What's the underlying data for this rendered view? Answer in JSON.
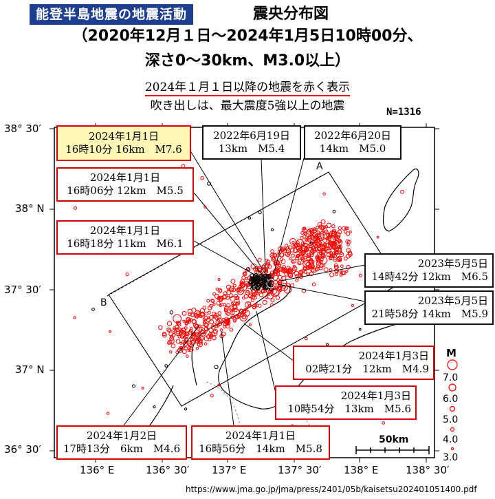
{
  "header": {
    "badge": "能登半島地震の地震活動",
    "title": "震央分布図",
    "line2": "（2020年12月１日～2024年1月5日10時00分、",
    "line3": "深さ0～30km、M3.0以上）"
  },
  "subheader": {
    "line1": "2024年１月１日以降の地震を赤く表示",
    "line2": "吹き出しは、最大震度5強以上の地震"
  },
  "count": "N=1316",
  "axes": {
    "lat_labels": [
      "38° 30′",
      "38° N",
      "37° 30′",
      "37° N",
      "36° 30′"
    ],
    "lon_labels": [
      "136° E",
      "136° 30′",
      "137° E",
      "137° 30′",
      "138° E",
      "138° 30′"
    ]
  },
  "profile_labels": {
    "a": "A",
    "b": "B"
  },
  "callouts": [
    {
      "id": "c1",
      "date": "2024年1月1日",
      "detail": "16時10分 16km　M7.6",
      "style": "red-yellow"
    },
    {
      "id": "c2",
      "date": "2024年1月1日",
      "detail": "16時06分 12km　M5.5",
      "style": "red"
    },
    {
      "id": "c3",
      "date": "2024年1月1日",
      "detail": "16時18分 11km　M6.1",
      "style": "red"
    },
    {
      "id": "c4",
      "date": "2022年6月19日",
      "detail": "13km　M5.4",
      "style": "black"
    },
    {
      "id": "c5",
      "date": "2022年6月20日",
      "detail": "14km　M5.0",
      "style": "black"
    },
    {
      "id": "c6",
      "date": "2023年5月5日",
      "detail": "14時42分 12km　M6.5",
      "style": "black"
    },
    {
      "id": "c7",
      "date": "2023年5月5日",
      "detail": "21時58分 14km　M5.9",
      "style": "black"
    },
    {
      "id": "c8",
      "date": "2024年1月3日",
      "detail": "02時21分　12km　M4.9",
      "style": "red"
    },
    {
      "id": "c9",
      "date": "2024年1月3日",
      "detail": "10時54分　13km　M5.6",
      "style": "red"
    },
    {
      "id": "c10",
      "date": "2024年1月2日",
      "detail": "17時13分　6km　M4.6",
      "style": "red"
    },
    {
      "id": "c11",
      "date": "2024年1月1日",
      "detail": "16時56分　14km　M5.8",
      "style": "red"
    }
  ],
  "legend": {
    "title": "M",
    "magnitudes": [
      "7.0",
      "6.0",
      "5.0",
      "4.0",
      "3.0"
    ]
  },
  "scale": {
    "label": "50km"
  },
  "source": "https://www.jma.go.jp/jma/press/2401/05b/kaisetsu202401051400.pdf",
  "colors": {
    "recent": "#ff0000",
    "older": "#000000",
    "badge": "#1e3f8f",
    "highlight": "#fff6b8"
  }
}
